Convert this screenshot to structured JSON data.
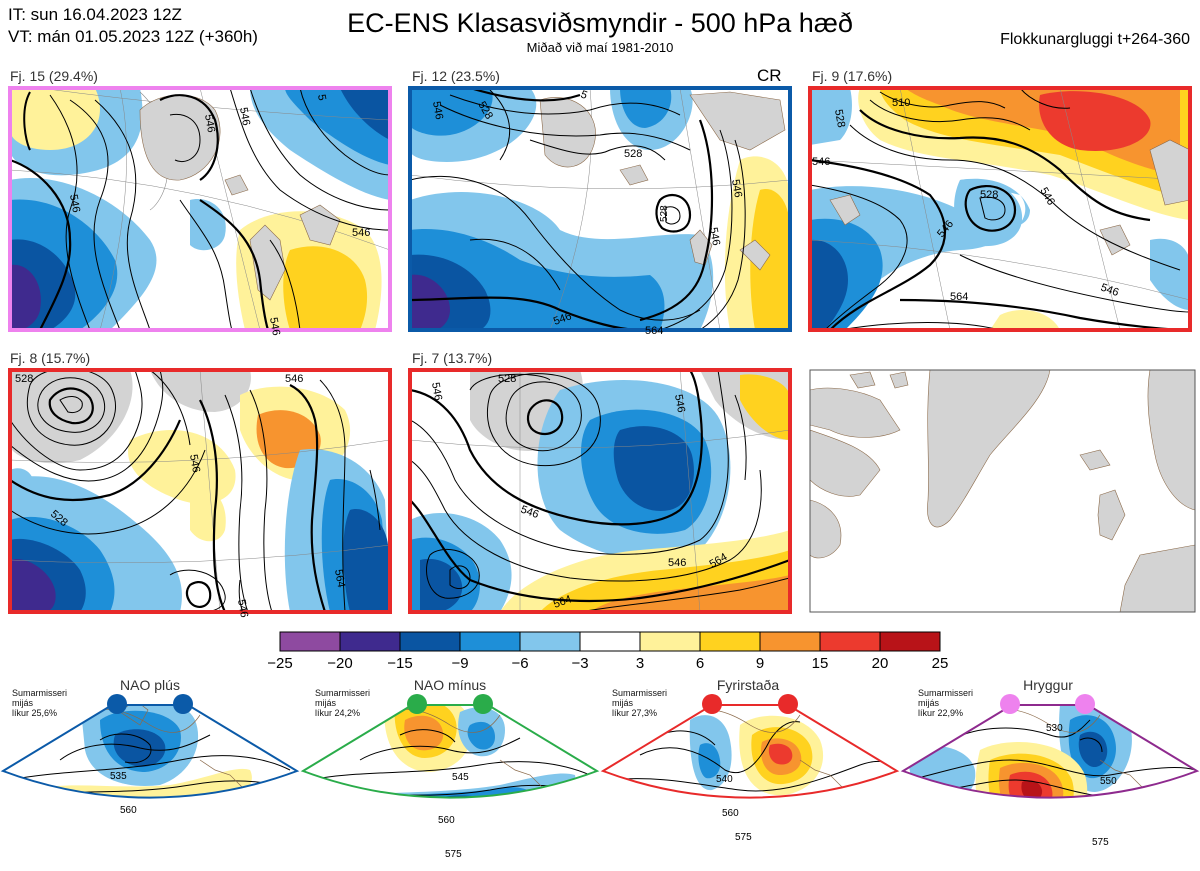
{
  "header": {
    "init_line": "IT: sun 16.04.2023 12Z",
    "valid_line": "VT: mán 01.05.2023 12Z  (+360h)",
    "title": "EC-ENS Klasasviðsmyndir - 500 hPa hæð",
    "subtitle": "Miðað við maí 1981-2010",
    "window": "Flokkunargluggi t+264-360"
  },
  "panels": [
    {
      "label": "Fj. 15 (29.4%)",
      "frame_color": "#ee82ee",
      "flag": "",
      "contours": [
        "546",
        "546",
        "546",
        "546",
        "546",
        "5"
      ]
    },
    {
      "label": "Fj. 12 (23.5%)",
      "frame_color": "#0b5aa8",
      "flag": "CR",
      "contours": [
        "546",
        "528",
        "528",
        "546",
        "546",
        "564",
        "528",
        "546",
        "5"
      ]
    },
    {
      "label": "Fj. 9 (17.6%)",
      "frame_color": "#e82a2a",
      "flag": "",
      "contours": [
        "510",
        "528",
        "546",
        "528",
        "546",
        "546",
        "564",
        "546"
      ]
    },
    {
      "label": "Fj. 8 (15.7%)",
      "frame_color": "#e82a2a",
      "flag": "",
      "contours": [
        "546",
        "546",
        "528",
        "564",
        "546",
        "528"
      ]
    },
    {
      "label": "Fj. 7 (13.7%)",
      "frame_color": "#e82a2a",
      "flag": "",
      "contours": [
        "546",
        "528",
        "546",
        "546",
        "564",
        "546",
        "564"
      ]
    }
  ],
  "colorbar": {
    "ticks": [
      "−25",
      "−20",
      "−15",
      "−9",
      "−6",
      "−3",
      "3",
      "6",
      "9",
      "15",
      "20",
      "25"
    ],
    "colors": [
      "#8e4aa0",
      "#3f2a8e",
      "#0a55a2",
      "#1e8fd8",
      "#82c6ec",
      "#ffffff",
      "#fff29a",
      "#ffd21f",
      "#f7942f",
      "#ec3a2e",
      "#b81318"
    ]
  },
  "regimes": [
    {
      "name": "NAO plús",
      "season": "Sumarmisseri",
      "line2": "mijás",
      "prob": "líkur 25,6%",
      "color": "#0b5aa8",
      "contours": [
        "535",
        "560"
      ]
    },
    {
      "name": "NAO mínus",
      "season": "Sumarmisseri",
      "line2": "mijás",
      "prob": "líkur 24,2%",
      "color": "#2aac4a",
      "contours": [
        "545",
        "560",
        "575"
      ]
    },
    {
      "name": "Fyrirstaða",
      "season": "Sumarmisseri",
      "line2": "mijás",
      "prob": "líkur 27,3%",
      "color": "#e82a2a",
      "contours": [
        "540",
        "560",
        "575"
      ]
    },
    {
      "name": "Hryggur",
      "season": "Sumarmisseri",
      "line2": "mijás",
      "prob": "líkur 22,9%",
      "color": "#8e2a8e",
      "contours": [
        "530",
        "550",
        "575"
      ]
    }
  ]
}
